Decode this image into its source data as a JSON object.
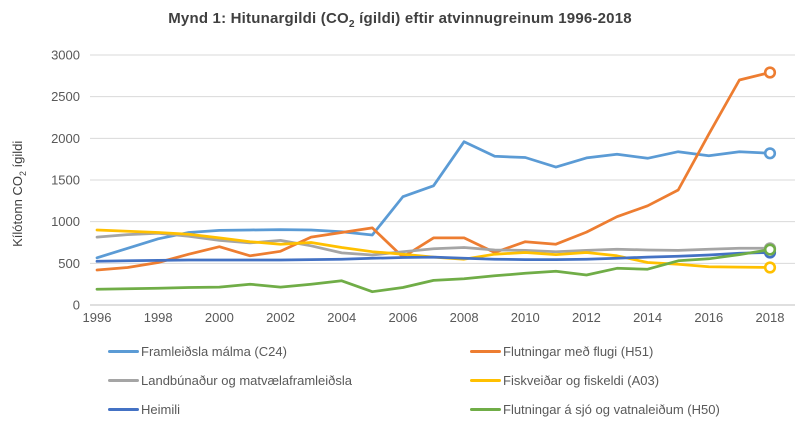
{
  "title": {
    "part1": "Mynd 1: Hitunargildi (CO",
    "sub": "2",
    "part2": " ígildi) eftir atvinnugreinum 1996-2018"
  },
  "y_axis": {
    "label_part1": "Kílótonn CO",
    "label_sub": "2",
    "label_part2": " ígildi",
    "ticks": [
      0,
      500,
      1000,
      1500,
      2000,
      2500,
      3000
    ]
  },
  "x_axis": {
    "ticks": [
      1996,
      1998,
      2000,
      2002,
      2004,
      2006,
      2008,
      2010,
      2012,
      2014,
      2016,
      2018
    ]
  },
  "colors": {
    "gridline": "#D9D9D9",
    "axis_line": "#BFBFBF",
    "tick_label": "#595959",
    "title_text": "#404040"
  },
  "chart_data": {
    "type": "line",
    "title": "Mynd 1: Hitunargildi (CO2 ígildi) eftir atvinnugreinum 1996-2018",
    "ylabel": "Kílótonn CO2 ígildi",
    "xlabel": "",
    "ylim": [
      0,
      3000
    ],
    "xlim": [
      1996,
      2018
    ],
    "grid": true,
    "legend_position": "bottom",
    "x": [
      1996,
      1997,
      1998,
      1999,
      2000,
      2001,
      2002,
      2003,
      2004,
      2005,
      2006,
      2007,
      2008,
      2009,
      2010,
      2011,
      2012,
      2013,
      2014,
      2015,
      2016,
      2017,
      2018
    ],
    "series": [
      {
        "id": "c24",
        "name": "Framleiðsla málma (C24)",
        "color": "#5B9BD5",
        "end_marker": true,
        "values": [
          567,
          680,
          795,
          870,
          895,
          900,
          905,
          900,
          880,
          840,
          1300,
          1430,
          1960,
          1785,
          1770,
          1655,
          1765,
          1810,
          1760,
          1840,
          1790,
          1840,
          1820
        ]
      },
      {
        "id": "h51",
        "name": "Flutningar með flugi (H51)",
        "color": "#ED7D31",
        "end_marker": true,
        "values": [
          420,
          450,
          510,
          610,
          700,
          590,
          645,
          815,
          870,
          925,
          575,
          805,
          805,
          630,
          760,
          730,
          875,
          1060,
          1190,
          1380,
          2050,
          2700,
          2790
        ]
      },
      {
        "id": "landbunadur",
        "name": "Landbúnaður og matvælaframleiðsla",
        "color": "#A5A5A5",
        "end_marker": true,
        "values": [
          815,
          845,
          860,
          825,
          775,
          745,
          775,
          710,
          625,
          600,
          640,
          675,
          690,
          660,
          655,
          640,
          655,
          670,
          660,
          655,
          670,
          680,
          680
        ]
      },
      {
        "id": "a03",
        "name": "Fiskveiðar og fiskeldi (A03)",
        "color": "#FFC000",
        "end_marker": true,
        "values": [
          900,
          885,
          870,
          850,
          805,
          760,
          730,
          750,
          690,
          640,
          610,
          575,
          550,
          610,
          630,
          605,
          630,
          590,
          510,
          490,
          460,
          455,
          450
        ]
      },
      {
        "id": "heimili",
        "name": "Heimili",
        "color": "#4472C4",
        "end_marker": true,
        "values": [
          525,
          530,
          535,
          540,
          540,
          540,
          540,
          545,
          550,
          560,
          570,
          575,
          560,
          550,
          545,
          545,
          550,
          560,
          575,
          585,
          600,
          620,
          630
        ]
      },
      {
        "id": "h50",
        "name": "Flutningar á sjó og vatnaleiðum (H50)",
        "color": "#70AD47",
        "end_marker": true,
        "values": [
          190,
          195,
          200,
          210,
          215,
          250,
          215,
          250,
          290,
          160,
          210,
          295,
          315,
          350,
          380,
          405,
          360,
          440,
          430,
          530,
          555,
          605,
          665
        ]
      }
    ]
  },
  "legend": {
    "items": [
      {
        "label": "Framleiðsla málma (C24)",
        "color": "#5B9BD5"
      },
      {
        "label": "Landbúnaður og matvælaframleiðsla",
        "color": "#A5A5A5"
      },
      {
        "label": "Heimili",
        "color": "#4472C4"
      },
      {
        "label": "Flutningar með flugi (H51)",
        "color": "#ED7D31"
      },
      {
        "label": "Fiskveiðar og fiskeldi (A03)",
        "color": "#FFC000"
      },
      {
        "label": "Flutningar á sjó og vatnaleiðum (H50)",
        "color": "#70AD47"
      }
    ]
  }
}
